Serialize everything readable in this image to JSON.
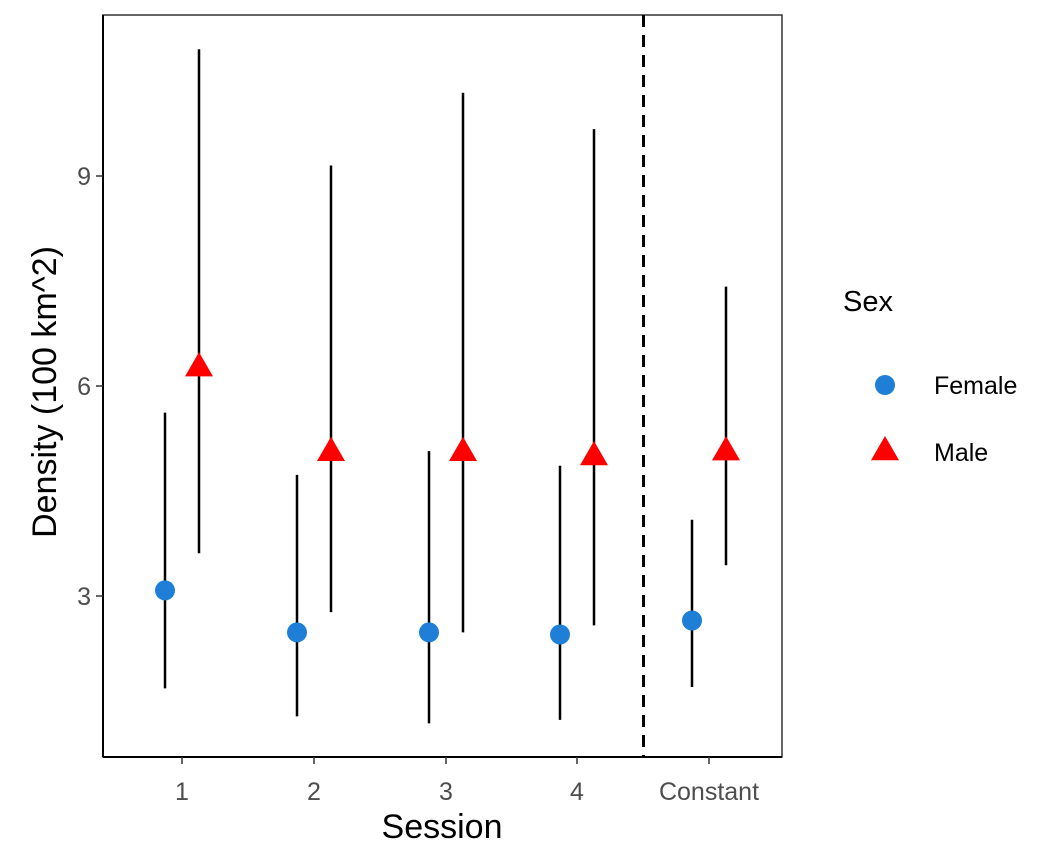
{
  "chart_data": {
    "type": "scatter",
    "subtype": "point-range (error bars)",
    "xlabel": "Session",
    "ylabel": "Density (100 km^2)",
    "categories": [
      "1",
      "2",
      "3",
      "4",
      "Constant"
    ],
    "ylim": [
      0.7,
      11.3
    ],
    "yticks": [
      3,
      6,
      9
    ],
    "grid": false,
    "panel_border": true,
    "reference_line": {
      "style": "dashed",
      "position": "between 4 and Constant"
    },
    "legend": {
      "title": "Sex",
      "placement": "right"
    },
    "series": [
      {
        "name": "Female",
        "shape": "circle",
        "color": "#1f7fd6",
        "values": [
          3.08,
          2.48,
          2.48,
          2.45,
          2.65
        ],
        "lower": [
          1.68,
          1.28,
          1.18,
          1.23,
          1.7
        ],
        "upper": [
          5.62,
          4.73,
          5.07,
          4.86,
          4.09
        ]
      },
      {
        "name": "Male",
        "shape": "triangle",
        "color": "#ff0000",
        "values": [
          6.27,
          5.06,
          5.06,
          5.0,
          5.07
        ],
        "lower": [
          3.61,
          2.77,
          2.48,
          2.58,
          3.44
        ],
        "upper": [
          10.81,
          9.15,
          10.19,
          9.67,
          7.42
        ]
      }
    ]
  }
}
